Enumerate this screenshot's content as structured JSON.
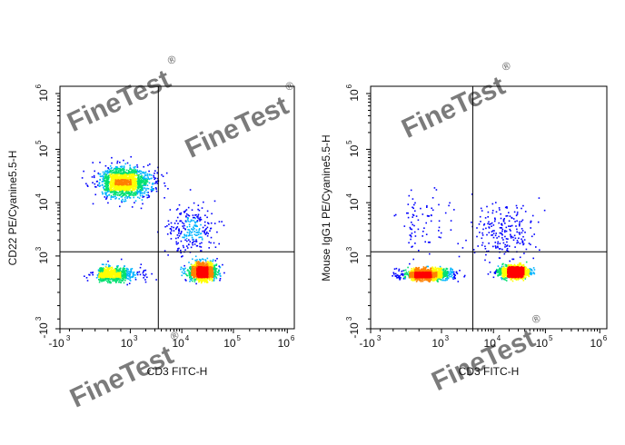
{
  "watermark": "FineTest",
  "watermark_mark": "®",
  "chart_data": [
    {
      "type": "scatter",
      "subtype": "flow-cytometry-density-dot-plot",
      "xlabel": "CD3 FITC-H",
      "ylabel": "CD22 PE/Cyanine5.5-H",
      "scale": "biexponential",
      "x_ticks": [
        {
          "base": "-10",
          "exp": "3"
        },
        {
          "base": "10",
          "exp": "3"
        },
        {
          "base": "10",
          "exp": "4"
        },
        {
          "base": "10",
          "exp": "5"
        },
        {
          "base": "10",
          "exp": "6"
        }
      ],
      "y_ticks": [
        {
          "base": "-10",
          "exp": "3"
        },
        {
          "base": "10",
          "exp": "3"
        },
        {
          "base": "10",
          "exp": "4"
        },
        {
          "base": "10",
          "exp": "5"
        },
        {
          "base": "10",
          "exp": "6"
        }
      ],
      "tick_values": [
        -1000,
        1000,
        10000,
        100000,
        1000000
      ],
      "gate": {
        "x": 3500,
        "y": 1200
      },
      "populations": [
        {
          "x": 700,
          "y": 25000,
          "spread_x": 0.55,
          "spread_y": 0.28,
          "weight": 1500
        },
        {
          "x": 350,
          "y": 400,
          "spread_x": 0.6,
          "spread_y": 0.18,
          "weight": 700
        },
        {
          "x": 25000,
          "y": 450,
          "spread_x": 0.25,
          "spread_y": 0.2,
          "weight": 1300
        },
        {
          "x": 15000,
          "y": 3000,
          "spread_x": 0.45,
          "spread_y": 0.45,
          "weight": 250
        }
      ],
      "grid": false,
      "density_colors": [
        "#0000ff",
        "#00b4ff",
        "#00e070",
        "#ffff00",
        "#ff8000",
        "#ff0000"
      ]
    },
    {
      "type": "scatter",
      "subtype": "flow-cytometry-density-dot-plot",
      "xlabel": "CD3 FITC-H",
      "ylabel": "Mouse IgG1 PE/Cyanine5.5-H",
      "scale": "biexponential",
      "x_ticks": [
        {
          "base": "-10",
          "exp": "3"
        },
        {
          "base": "10",
          "exp": "3"
        },
        {
          "base": "10",
          "exp": "4"
        },
        {
          "base": "10",
          "exp": "5"
        },
        {
          "base": "10",
          "exp": "6"
        }
      ],
      "y_ticks": [
        {
          "base": "-10",
          "exp": "3"
        },
        {
          "base": "10",
          "exp": "3"
        },
        {
          "base": "10",
          "exp": "4"
        },
        {
          "base": "10",
          "exp": "5"
        },
        {
          "base": "10",
          "exp": "6"
        }
      ],
      "tick_values": [
        -1000,
        1000,
        10000,
        100000,
        1000000
      ],
      "gate": {
        "x": 4000,
        "y": 1200
      },
      "populations": [
        {
          "x": 400,
          "y": 400,
          "spread_x": 0.55,
          "spread_y": 0.12,
          "weight": 1700
        },
        {
          "x": 25000,
          "y": 450,
          "spread_x": 0.28,
          "spread_y": 0.13,
          "weight": 1500
        },
        {
          "x": 15000,
          "y": 3000,
          "spread_x": 0.6,
          "spread_y": 0.55,
          "weight": 220
        },
        {
          "x": 300,
          "y": 5000,
          "spread_x": 0.9,
          "spread_y": 0.6,
          "weight": 80
        }
      ],
      "grid": false,
      "density_colors": [
        "#0000ff",
        "#00b4ff",
        "#00e070",
        "#ffff00",
        "#ff8000",
        "#ff0000"
      ]
    }
  ]
}
